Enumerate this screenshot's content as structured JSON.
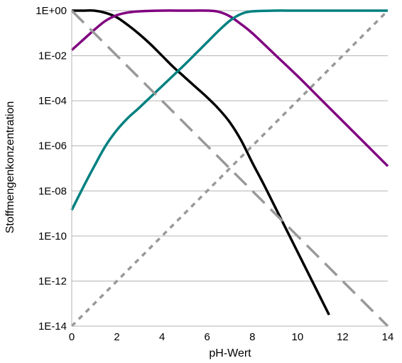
{
  "chart_data": {
    "type": "line",
    "title": "",
    "xlabel": "pH-Wert",
    "ylabel": "Stoffmengenkonzentration",
    "xlim": [
      0,
      14
    ],
    "ylim_log10": [
      -14,
      0
    ],
    "yscale": "log",
    "grid": "horizontal",
    "legend": "none",
    "x_ticks": [
      "0",
      "2",
      "4",
      "6",
      "8",
      "10",
      "12",
      "14"
    ],
    "y_ticks": [
      "1E+00",
      "1E-02",
      "1E-04",
      "1E-06",
      "1E-08",
      "1E-10",
      "1E-12",
      "1E-14"
    ],
    "series": [
      {
        "color": "#000000",
        "style": "solid",
        "x": [
          0,
          0.5,
          1,
          1.5,
          2,
          2.5,
          3,
          3.5,
          4,
          4.5,
          5,
          5.5,
          6,
          6.5,
          7,
          7.5,
          8,
          8.5,
          9,
          9.5,
          10,
          10.5,
          11,
          11.4
        ],
        "y_log10": [
          0,
          0,
          0,
          -0.1,
          -0.3,
          -0.65,
          -1.05,
          -1.5,
          -2.0,
          -2.5,
          -2.95,
          -3.4,
          -3.85,
          -4.35,
          -4.95,
          -5.75,
          -6.75,
          -7.7,
          -8.7,
          -9.7,
          -10.7,
          -11.7,
          -12.7,
          -13.5
        ]
      },
      {
        "color": "#800080",
        "style": "solid",
        "x": [
          0,
          0.5,
          1,
          1.5,
          2,
          2.5,
          3,
          4,
          5,
          6,
          6.5,
          7,
          7.5,
          8,
          9,
          10,
          11,
          12,
          13,
          14
        ],
        "y_log10": [
          -1.75,
          -1.3,
          -0.85,
          -0.45,
          -0.2,
          -0.08,
          -0.03,
          0,
          0,
          0,
          -0.05,
          -0.25,
          -0.6,
          -1.0,
          -1.95,
          -2.9,
          -3.9,
          -4.9,
          -5.9,
          -6.9
        ]
      },
      {
        "color": "#008080",
        "style": "solid",
        "x": [
          0,
          0.5,
          1,
          1.5,
          2,
          2.5,
          3,
          4,
          5,
          5.5,
          6,
          6.5,
          7,
          7.5,
          8,
          9,
          10,
          12,
          14
        ],
        "y_log10": [
          -8.85,
          -7.85,
          -6.9,
          -6.0,
          -5.3,
          -4.75,
          -4.3,
          -3.35,
          -2.4,
          -1.9,
          -1.4,
          -0.9,
          -0.45,
          -0.15,
          -0.03,
          0,
          0,
          0,
          0
        ]
      },
      {
        "color": "#999999",
        "style": "long-dash",
        "x": [
          0,
          14
        ],
        "y_log10": [
          0,
          -14
        ]
      },
      {
        "color": "#999999",
        "style": "short-dash",
        "x": [
          0,
          14
        ],
        "y_log10": [
          -14,
          0
        ]
      }
    ]
  }
}
